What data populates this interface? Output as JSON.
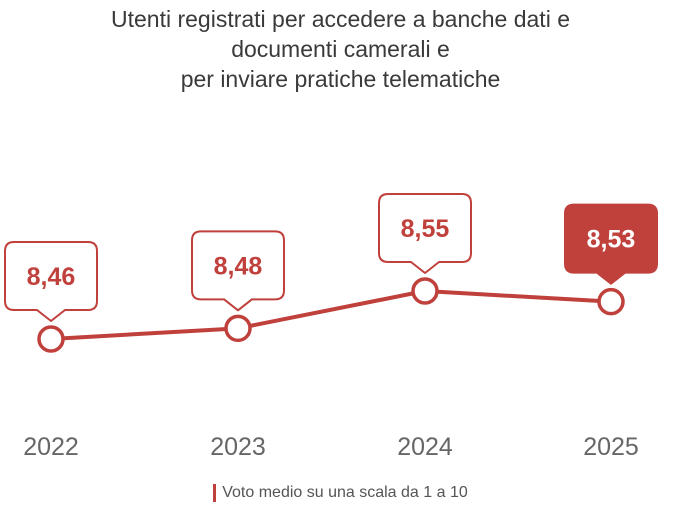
{
  "title_lines": [
    "Utenti registrati per accedere a banche dati e",
    "documenti camerali e",
    "per inviare pratiche telematiche"
  ],
  "colors": {
    "accent": "#c0403c",
    "text": "#3a3a3a",
    "axis_text": "#666666",
    "legend_text": "#555555"
  },
  "chart_data": {
    "type": "line",
    "categories": [
      "2022",
      "2023",
      "2024",
      "2025"
    ],
    "series": [
      {
        "name": "Voto medio su una scala da 1 a 10",
        "values": [
          8.46,
          8.48,
          8.55,
          8.53
        ]
      }
    ],
    "data_labels": [
      "8,46",
      "8,48",
      "8,55",
      "8,53"
    ],
    "highlighted": "2025",
    "title": "Utenti registrati per accedere a banche dati e documenti camerali e per inviare pratiche telematiche",
    "xlabel": "",
    "ylabel": "",
    "grid": false,
    "legend": "bottom-center"
  },
  "legend": {
    "label": "Voto medio su una scala da 1 a 10"
  }
}
